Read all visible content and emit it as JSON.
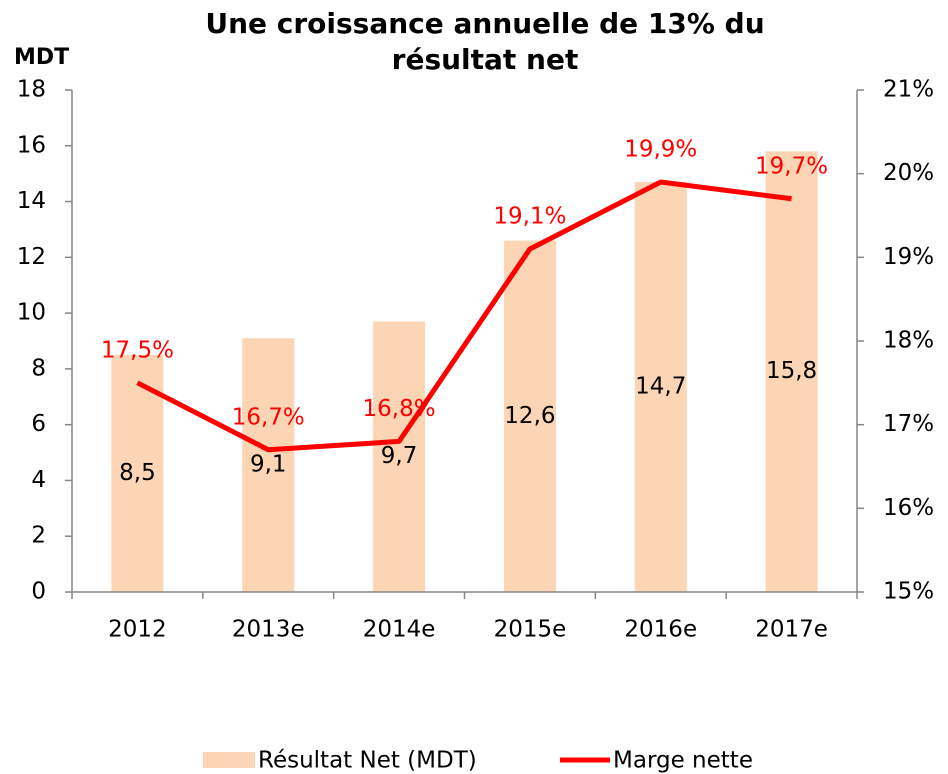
{
  "chart_data": {
    "type": "bar_line",
    "title": "Une croissance annuelle de 13% du résultat net",
    "y_label": "MDT",
    "categories": [
      "2012",
      "2013e",
      "2014e",
      "2015e",
      "2016e",
      "2017e"
    ],
    "series": [
      {
        "name": "Résultat Net (MDT)",
        "type": "bar",
        "color": "#fcd5b4",
        "axis": "y",
        "values": [
          8.5,
          9.1,
          9.7,
          12.6,
          14.7,
          15.8
        ],
        "value_labels": [
          "8,5",
          "9,1",
          "9,7",
          "12,6",
          "14,7",
          "15,8"
        ]
      },
      {
        "name": "Marge nette",
        "type": "line",
        "color": "#ff0000",
        "axis": "y2",
        "values": [
          17.5,
          16.7,
          16.8,
          19.1,
          19.9,
          19.7
        ],
        "value_labels": [
          "17,5%",
          "16,7%",
          "16,8%",
          "19,1%",
          "19,9%",
          "19,7%"
        ]
      }
    ],
    "ylim": [
      0,
      18
    ],
    "yticks": [
      0,
      2,
      4,
      6,
      8,
      10,
      12,
      14,
      16,
      18
    ],
    "y2lim": [
      15,
      21
    ],
    "y2ticks": [
      {
        "value": 15,
        "label": "15%"
      },
      {
        "value": 16,
        "label": "16%"
      },
      {
        "value": 17,
        "label": "17%"
      },
      {
        "value": 18,
        "label": "18%"
      },
      {
        "value": 19,
        "label": "19%"
      },
      {
        "value": 20,
        "label": "20%"
      },
      {
        "value": 21,
        "label": "21%"
      }
    ],
    "grid": false,
    "legend": "bottom"
  }
}
